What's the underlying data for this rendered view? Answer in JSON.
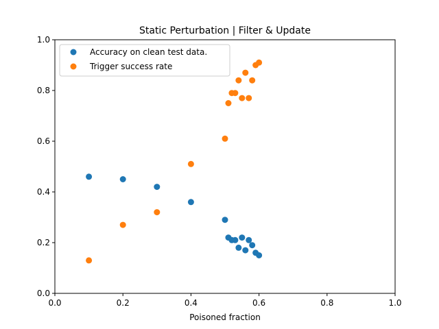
{
  "chart_data": {
    "type": "scatter",
    "title": "Static Perturbation | Filter & Update",
    "xlabel": "Poisoned fraction",
    "ylabel": "",
    "xlim": [
      0.0,
      1.0
    ],
    "ylim": [
      0.0,
      1.0
    ],
    "xticks": [
      "0.0",
      "0.2",
      "0.4",
      "0.6",
      "0.8",
      "1.0"
    ],
    "yticks": [
      "0.0",
      "0.2",
      "0.4",
      "0.6",
      "0.8",
      "1.0"
    ],
    "grid": false,
    "legend_position": "upper-left",
    "series": [
      {
        "name": "Accuracy on clean test data.",
        "color": "#1f77b4",
        "points": [
          [
            0.1,
            0.46
          ],
          [
            0.2,
            0.45
          ],
          [
            0.3,
            0.42
          ],
          [
            0.4,
            0.36
          ],
          [
            0.5,
            0.29
          ],
          [
            0.51,
            0.22
          ],
          [
            0.52,
            0.21
          ],
          [
            0.53,
            0.21
          ],
          [
            0.54,
            0.18
          ],
          [
            0.55,
            0.22
          ],
          [
            0.56,
            0.17
          ],
          [
            0.57,
            0.21
          ],
          [
            0.58,
            0.19
          ],
          [
            0.59,
            0.16
          ],
          [
            0.6,
            0.15
          ]
        ]
      },
      {
        "name": "Trigger success rate",
        "color": "#ff7f0e",
        "points": [
          [
            0.1,
            0.13
          ],
          [
            0.2,
            0.27
          ],
          [
            0.3,
            0.32
          ],
          [
            0.4,
            0.51
          ],
          [
            0.5,
            0.61
          ],
          [
            0.51,
            0.75
          ],
          [
            0.52,
            0.79
          ],
          [
            0.53,
            0.79
          ],
          [
            0.54,
            0.84
          ],
          [
            0.55,
            0.77
          ],
          [
            0.56,
            0.87
          ],
          [
            0.57,
            0.77
          ],
          [
            0.58,
            0.84
          ],
          [
            0.59,
            0.9
          ],
          [
            0.6,
            0.91
          ]
        ]
      }
    ]
  }
}
